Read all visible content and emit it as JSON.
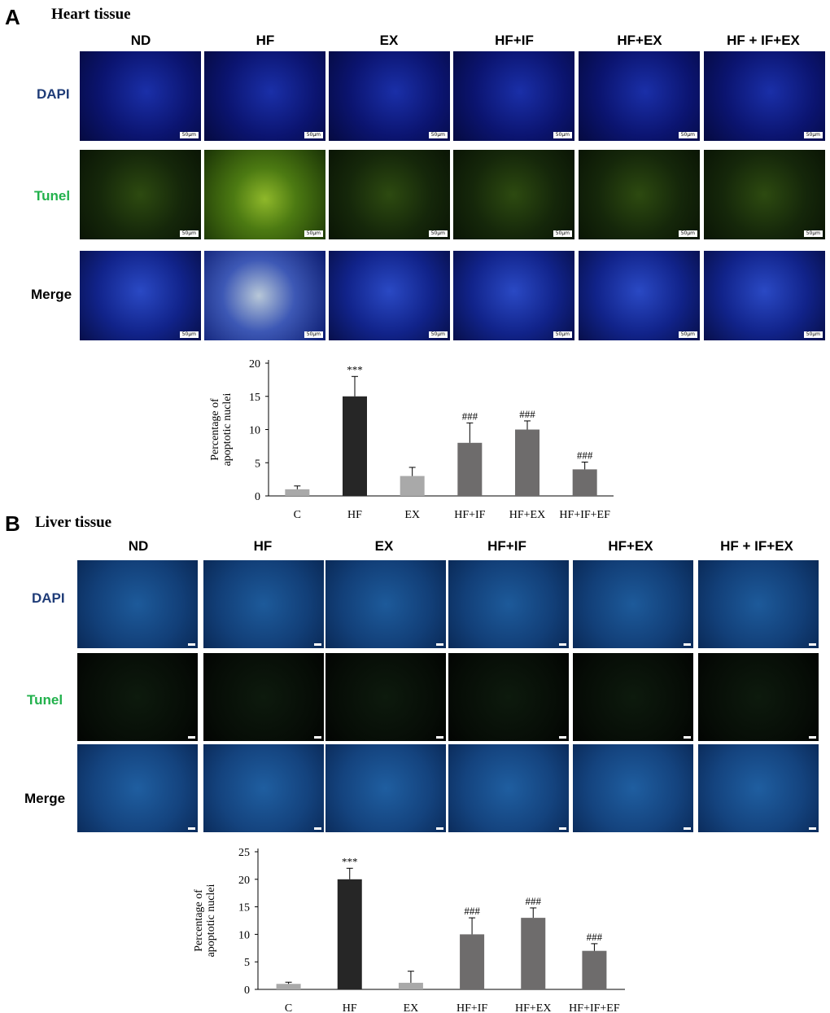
{
  "panels": {
    "A": {
      "letter": "A",
      "title": "Heart tissue"
    },
    "B": {
      "letter": "B",
      "title": "Liver tissue"
    }
  },
  "columns": [
    "ND",
    "HF",
    "EX",
    "HF+IF",
    "HF+EX",
    "HF + IF+EX"
  ],
  "rows": [
    "DAPI",
    "Tunel",
    "Merge"
  ],
  "row_colors": {
    "DAPI": "#1f3c78",
    "Tunel": "#22b14c",
    "Merge": "#000000"
  },
  "scale_bar_label": "50μm",
  "chart_data": [
    {
      "type": "bar",
      "panel": "A",
      "ylabel": "Percentage of apoptotic nuclei",
      "categories": [
        "C",
        "HF",
        "EX",
        "HF+IF",
        "HF+EX",
        "HF+IF+EF"
      ],
      "values": [
        1,
        15,
        3,
        8,
        10,
        4
      ],
      "errors": [
        0.5,
        3,
        1.3,
        3,
        1.3,
        1.1
      ],
      "annotations": [
        "",
        "***",
        "",
        "###",
        "###",
        "###"
      ],
      "bar_colors": [
        "#a9a9a9",
        "#262626",
        "#a9a9a9",
        "#6e6c6c",
        "#6e6c6c",
        "#6e6c6c"
      ],
      "ylim": [
        0,
        20
      ],
      "yticks": [
        0,
        5,
        10,
        15,
        20
      ],
      "grid": false
    },
    {
      "type": "bar",
      "panel": "B",
      "ylabel": "Percentage of apoptotic nuclei",
      "categories": [
        "C",
        "HF",
        "EX",
        "HF+IF",
        "HF+EX",
        "HF+IF+EF"
      ],
      "values": [
        1,
        20,
        1.2,
        10,
        13,
        7
      ],
      "errors": [
        0.3,
        2,
        2.1,
        3,
        1.8,
        1.3
      ],
      "annotations": [
        "",
        "***",
        "",
        "###",
        "###",
        "###"
      ],
      "bar_colors": [
        "#a9a9a9",
        "#262626",
        "#a9a9a9",
        "#6e6c6c",
        "#6e6c6c",
        "#6e6c6c"
      ],
      "ylim": [
        0,
        25
      ],
      "yticks": [
        0,
        5,
        10,
        15,
        20,
        25
      ],
      "grid": false
    }
  ]
}
